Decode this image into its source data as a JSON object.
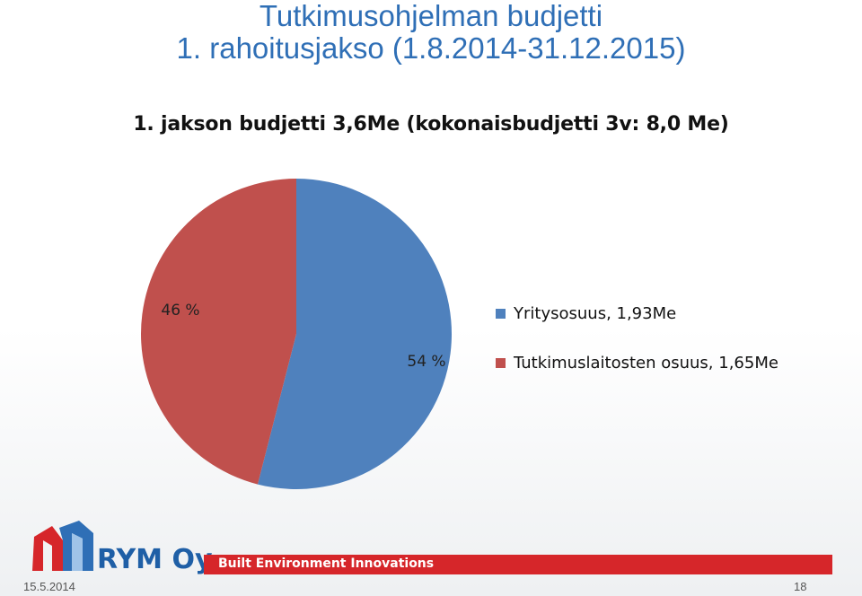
{
  "slide": {
    "title_line1": "Tutkimusohjelman budjetti",
    "title_line2": "1. rahoitusjakso (1.8.2014-31.12.2015)",
    "date": "15.5.2014",
    "page_number": "18"
  },
  "branding": {
    "company": "RYM Oy",
    "slogan": "Built Environment Innovations",
    "brand_color": "#1f5fa6",
    "accent_color": "#d6262a"
  },
  "chart_data": {
    "type": "pie",
    "title": "1. jakson budjetti 3,6Me (kokonaisbudjetti 3v: 8,0 Me)",
    "legend_position": "right",
    "slices": [
      {
        "name": "Yritysosuus, 1,93Me",
        "value": 54,
        "label": "54 %",
        "color": "#4f81bd"
      },
      {
        "name": "Tutkimuslaitosten osuus, 1,65Me",
        "value": 46,
        "label": "46 %",
        "color": "#c0504d"
      }
    ]
  }
}
